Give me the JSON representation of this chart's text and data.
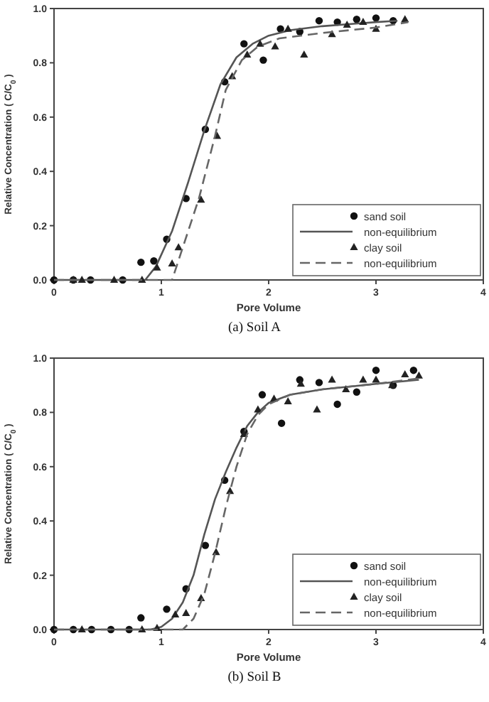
{
  "chart_data": [
    {
      "type": "scatter",
      "title": "(a)  Soil  A",
      "xlabel": "Pore Volume",
      "ylabel": "Relative Concentration ( C/C$_{0}$ )",
      "xlim": [
        0,
        4
      ],
      "xticks": [
        0,
        1,
        2,
        3,
        4
      ],
      "ylim": [
        0,
        1
      ],
      "yticks": [
        {
          "value": 0,
          "label": "0.0"
        },
        {
          "value": 0.2,
          "label": "0.2"
        },
        {
          "value": 0.4,
          "label": "0.4"
        },
        {
          "value": 0.6,
          "label": "0.6"
        },
        {
          "value": 0.8,
          "label": "0.8"
        },
        {
          "value": 1,
          "label": "1.0"
        }
      ],
      "legend": "bottom right",
      "grid": false,
      "series": [
        {
          "name": "sand soil",
          "type": "scatter",
          "marker": "circle",
          "color": "#111111",
          "x": [
            0,
            0.18,
            0.34,
            0.64,
            0.81,
            0.93,
            1.05,
            1.23,
            1.41,
            1.59,
            1.77,
            1.95,
            2.11,
            2.29,
            2.47,
            2.64,
            2.82,
            3.0,
            3.16
          ],
          "values": [
            0,
            0,
            0,
            0,
            0.065,
            0.07,
            0.15,
            0.3,
            0.555,
            0.73,
            0.87,
            0.81,
            0.925,
            0.915,
            0.955,
            0.95,
            0.96,
            0.965,
            0.955
          ]
        },
        {
          "name": "non-equilibrium",
          "type": "line",
          "line_style": "solid",
          "color": "#555555",
          "x": [
            0,
            0.85,
            0.95,
            1.1,
            1.25,
            1.4,
            1.55,
            1.7,
            1.85,
            2.0,
            2.2,
            2.5,
            3.0,
            3.2
          ],
          "values": [
            0,
            0,
            0.05,
            0.18,
            0.36,
            0.55,
            0.72,
            0.82,
            0.87,
            0.9,
            0.92,
            0.935,
            0.95,
            0.955
          ]
        },
        {
          "name": "clay soil",
          "type": "scatter",
          "marker": "triangle",
          "color": "#222222",
          "x": [
            0.18,
            0.26,
            0.56,
            0.82,
            0.96,
            1.1,
            1.16,
            1.37,
            1.52,
            1.66,
            1.8,
            1.92,
            2.06,
            2.18,
            2.33,
            2.59,
            2.73,
            2.88,
            3.0,
            3.27
          ],
          "values": [
            0,
            0,
            0,
            0,
            0.045,
            0.06,
            0.12,
            0.295,
            0.53,
            0.75,
            0.83,
            0.87,
            0.86,
            0.925,
            0.83,
            0.905,
            0.94,
            0.95,
            0.925,
            0.96
          ]
        },
        {
          "name": "non-equilibrium",
          "type": "line",
          "line_style": "dashed",
          "color": "#666666",
          "x": [
            0,
            1.1,
            1.2,
            1.35,
            1.5,
            1.6,
            1.75,
            1.9,
            2.1,
            2.5,
            3.0,
            3.3
          ],
          "values": [
            0,
            0,
            0.12,
            0.3,
            0.53,
            0.7,
            0.81,
            0.86,
            0.89,
            0.91,
            0.93,
            0.95
          ]
        }
      ]
    },
    {
      "type": "scatter",
      "title": "(b)  Soil  B",
      "xlabel": "Pore Volume",
      "ylabel": "Relative Concentration ( C/C$_{0}$ )",
      "xlim": [
        0,
        4
      ],
      "xticks": [
        0,
        1,
        2,
        3,
        4
      ],
      "ylim": [
        0,
        1
      ],
      "yticks": [
        {
          "value": 0,
          "label": "0.0"
        },
        {
          "value": 0.2,
          "label": "0.2"
        },
        {
          "value": 0.4,
          "label": "0.4"
        },
        {
          "value": 0.6,
          "label": "0.6"
        },
        {
          "value": 0.8,
          "label": "0.8"
        },
        {
          "value": 1,
          "label": "1.0"
        }
      ],
      "legend": "bottom right",
      "grid": false,
      "series": [
        {
          "name": "sand soil",
          "type": "scatter",
          "marker": "circle",
          "color": "#111111",
          "x": [
            0,
            0.18,
            0.35,
            0.53,
            0.7,
            0.81,
            1.05,
            1.23,
            1.41,
            1.59,
            1.77,
            1.94,
            2.12,
            2.29,
            2.47,
            2.64,
            2.82,
            3.0,
            3.16,
            3.35
          ],
          "values": [
            0,
            0,
            0,
            0,
            0,
            0.043,
            0.075,
            0.15,
            0.31,
            0.55,
            0.73,
            0.865,
            0.76,
            0.92,
            0.91,
            0.83,
            0.875,
            0.955,
            0.9,
            0.955
          ]
        },
        {
          "name": "non-equilibrium",
          "type": "line",
          "line_style": "solid",
          "color": "#555555",
          "x": [
            0,
            0.9,
            1.0,
            1.1,
            1.2,
            1.3,
            1.4,
            1.5,
            1.6,
            1.7,
            1.8,
            1.9,
            2.0,
            2.2,
            2.5,
            3.0,
            3.4
          ],
          "values": [
            0,
            0,
            0.01,
            0.04,
            0.1,
            0.2,
            0.35,
            0.48,
            0.58,
            0.67,
            0.75,
            0.8,
            0.835,
            0.865,
            0.885,
            0.905,
            0.92
          ]
        },
        {
          "name": "clay soil",
          "type": "scatter",
          "marker": "triangle",
          "color": "#222222",
          "x": [
            0.26,
            0.82,
            0.96,
            1.13,
            1.23,
            1.37,
            1.51,
            1.64,
            1.77,
            1.9,
            2.05,
            2.18,
            2.3,
            2.45,
            2.59,
            2.72,
            2.88,
            3.0,
            3.15,
            3.27,
            3.4
          ],
          "values": [
            0,
            0,
            0.005,
            0.055,
            0.06,
            0.115,
            0.285,
            0.51,
            0.72,
            0.81,
            0.85,
            0.84,
            0.905,
            0.81,
            0.92,
            0.885,
            0.92,
            0.92,
            0.9,
            0.94,
            0.935
          ]
        },
        {
          "name": "non-equilibrium",
          "type": "line",
          "line_style": "dashed",
          "color": "#666666",
          "x": [
            0,
            1.2,
            1.3,
            1.4,
            1.5,
            1.6,
            1.7,
            1.8,
            1.9,
            2.0,
            2.2,
            2.5,
            3.0,
            3.4
          ],
          "values": [
            0,
            0,
            0.04,
            0.13,
            0.28,
            0.45,
            0.6,
            0.72,
            0.79,
            0.83,
            0.865,
            0.885,
            0.905,
            0.925
          ]
        }
      ]
    }
  ]
}
